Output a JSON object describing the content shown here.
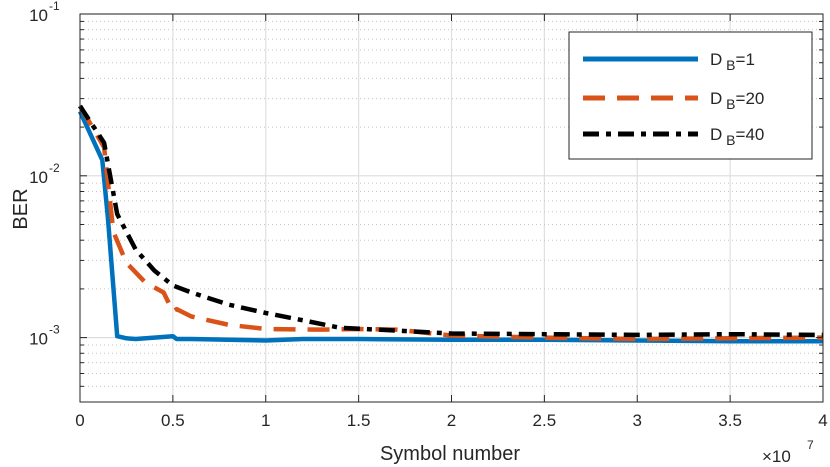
{
  "chart_data": {
    "type": "line",
    "title": "",
    "xlabel": "Symbol number",
    "ylabel": "BER",
    "x_exponent_label": "×10",
    "x_exponent_power": "7",
    "xlim": [
      0,
      4
    ],
    "ylim": [
      0.0004,
      0.1
    ],
    "yscale": "log",
    "grid": true,
    "legend_position": "top-right",
    "x_ticks": [
      0,
      0.5,
      1,
      1.5,
      2,
      2.5,
      3,
      3.5,
      4
    ],
    "x_tick_labels": [
      "0",
      "0.5",
      "1",
      "1.5",
      "2",
      "2.5",
      "3",
      "3.5",
      "4"
    ],
    "y_ticks": [
      0.1,
      0.01,
      0.001
    ],
    "y_tick_labels": [
      {
        "base": "10",
        "exp": "-1"
      },
      {
        "base": "10",
        "exp": "-2"
      },
      {
        "base": "10",
        "exp": "-3"
      }
    ],
    "series": [
      {
        "name_main": "D",
        "name_sub": "B",
        "name_tail": "=1",
        "color": "#0072BD",
        "dash": "solid",
        "x": [
          0,
          0.12,
          0.15,
          0.2,
          0.25,
          0.3,
          0.4,
          0.5,
          0.52,
          0.6,
          0.8,
          1.0,
          1.2,
          1.5,
          2.0,
          2.5,
          3.0,
          3.5,
          4.0
        ],
        "y": [
          0.025,
          0.0125,
          0.0055,
          0.00102,
          0.00099,
          0.00098,
          0.001,
          0.00102,
          0.00098,
          0.00098,
          0.00097,
          0.00096,
          0.00098,
          0.00098,
          0.00097,
          0.00097,
          0.00096,
          0.00095,
          0.00095
        ]
      },
      {
        "name_main": "D",
        "name_sub": "B",
        "name_tail": "=20",
        "color": "#D95319",
        "dash": "dashed",
        "x": [
          0,
          0.13,
          0.18,
          0.25,
          0.35,
          0.45,
          0.5,
          0.52,
          0.6,
          0.8,
          1.0,
          1.3,
          1.5,
          1.7,
          2.0,
          2.5,
          3.0,
          3.5,
          4.0
        ],
        "y": [
          0.027,
          0.015,
          0.0045,
          0.0029,
          0.0022,
          0.0019,
          0.00145,
          0.0015,
          0.00135,
          0.0012,
          0.00113,
          0.00112,
          0.00113,
          0.00112,
          0.00103,
          0.001,
          0.00098,
          0.00099,
          0.001
        ]
      },
      {
        "name_main": "D",
        "name_sub": "B",
        "name_tail": "=40",
        "color": "#000000",
        "dash": "dashdot",
        "x": [
          0,
          0.13,
          0.2,
          0.3,
          0.4,
          0.5,
          0.6,
          0.8,
          1.0,
          1.2,
          1.4,
          1.6,
          2.0,
          2.5,
          3.0,
          3.5,
          4.0
        ],
        "y": [
          0.027,
          0.016,
          0.0058,
          0.0035,
          0.0026,
          0.0021,
          0.0019,
          0.0016,
          0.00142,
          0.00128,
          0.00115,
          0.00112,
          0.00106,
          0.00105,
          0.00104,
          0.00105,
          0.00104
        ]
      }
    ]
  }
}
